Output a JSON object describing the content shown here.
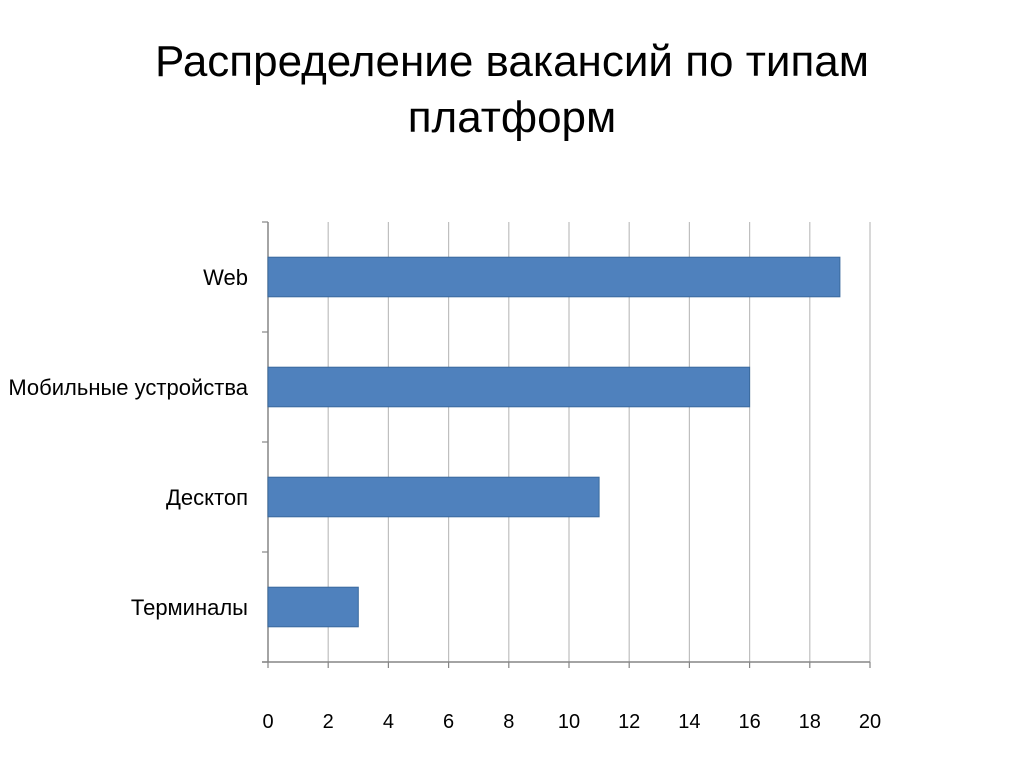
{
  "slide": {
    "title": "Распределение вакансий по типам платформ"
  },
  "chart_data": {
    "type": "bar",
    "orientation": "horizontal",
    "title": "",
    "xlabel": "",
    "ylabel": "",
    "categories": [
      "Web",
      "Мобильные устройства",
      "Десктоп",
      "Терминалы"
    ],
    "values": [
      19,
      16,
      11,
      3
    ],
    "xlim": [
      0,
      20
    ],
    "x_ticks": [
      0,
      2,
      4,
      6,
      8,
      10,
      12,
      14,
      16,
      18,
      20
    ],
    "grid": "vertical",
    "legend": "none",
    "bar_color": "#4F81BD",
    "grid_color": "#BFBFBF"
  }
}
